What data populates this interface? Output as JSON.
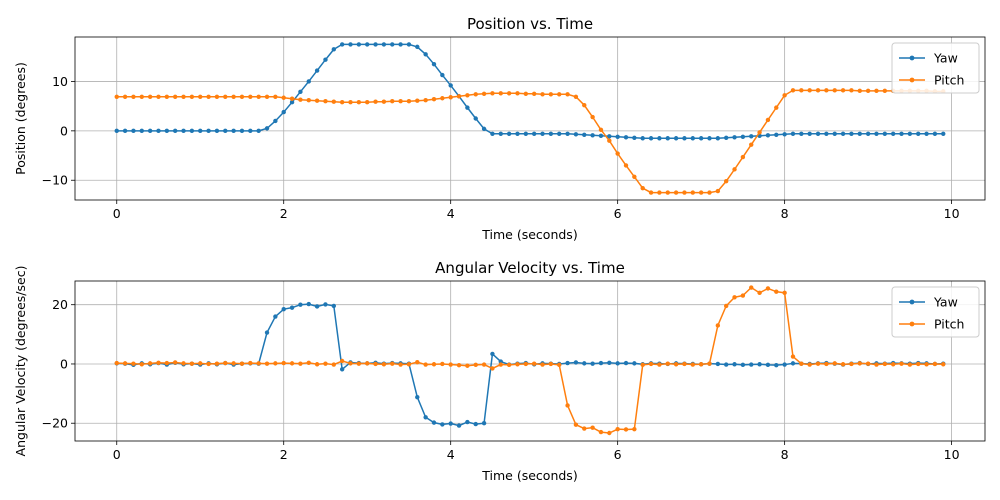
{
  "chart_data": [
    {
      "type": "line",
      "title": "Position vs. Time",
      "xlabel": "Time (seconds)",
      "ylabel": "Position (degrees)",
      "xlim": [
        -0.5,
        10.4
      ],
      "ylim": [
        -14,
        19
      ],
      "xticks": [
        0,
        2,
        4,
        6,
        8,
        10
      ],
      "yticks": [
        -10,
        0,
        10
      ],
      "grid": true,
      "legend_position": "top-right",
      "x": [
        0.0,
        0.1,
        0.2,
        0.3,
        0.4,
        0.5,
        0.6,
        0.7,
        0.8,
        0.9,
        1.0,
        1.1,
        1.2,
        1.3,
        1.4,
        1.5,
        1.6,
        1.7,
        1.8,
        1.9,
        2.0,
        2.1,
        2.2,
        2.3,
        2.4,
        2.5,
        2.6,
        2.7,
        2.8,
        2.9,
        3.0,
        3.1,
        3.2,
        3.3,
        3.4,
        3.5,
        3.6,
        3.7,
        3.8,
        3.9,
        4.0,
        4.1,
        4.2,
        4.3,
        4.4,
        4.5,
        4.6,
        4.7,
        4.8,
        4.9,
        5.0,
        5.1,
        5.2,
        5.3,
        5.4,
        5.5,
        5.6,
        5.7,
        5.8,
        5.9,
        6.0,
        6.1,
        6.2,
        6.3,
        6.4,
        6.5,
        6.6,
        6.7,
        6.8,
        6.9,
        7.0,
        7.1,
        7.2,
        7.3,
        7.4,
        7.5,
        7.6,
        7.7,
        7.8,
        7.9,
        8.0,
        8.1,
        8.2,
        8.3,
        8.4,
        8.5,
        8.6,
        8.7,
        8.8,
        8.9,
        9.0,
        9.1,
        9.2,
        9.3,
        9.4,
        9.5,
        9.6,
        9.7,
        9.8,
        9.9
      ],
      "series": [
        {
          "name": "Yaw",
          "color": "#1f77b4",
          "values": [
            0,
            0,
            0,
            0,
            0,
            0,
            0,
            0,
            0,
            0,
            0,
            0,
            0,
            0,
            0,
            0,
            0,
            0,
            0.5,
            2.0,
            3.8,
            5.8,
            7.9,
            10.0,
            12.2,
            14.4,
            16.5,
            17.5,
            17.5,
            17.5,
            17.5,
            17.5,
            17.5,
            17.5,
            17.5,
            17.5,
            17.0,
            15.5,
            13.5,
            11.3,
            9.2,
            7.0,
            4.7,
            2.5,
            0.4,
            -0.6,
            -0.6,
            -0.6,
            -0.6,
            -0.6,
            -0.6,
            -0.6,
            -0.6,
            -0.6,
            -0.6,
            -0.7,
            -0.8,
            -0.9,
            -1.0,
            -1.1,
            -1.2,
            -1.3,
            -1.4,
            -1.5,
            -1.5,
            -1.5,
            -1.5,
            -1.5,
            -1.5,
            -1.5,
            -1.5,
            -1.5,
            -1.5,
            -1.4,
            -1.3,
            -1.2,
            -1.1,
            -1.0,
            -0.9,
            -0.8,
            -0.7,
            -0.6,
            -0.6,
            -0.6,
            -0.6,
            -0.6,
            -0.6,
            -0.6,
            -0.6,
            -0.6,
            -0.6,
            -0.6,
            -0.6,
            -0.6,
            -0.6,
            -0.6,
            -0.6,
            -0.6,
            -0.6,
            -0.6
          ]
        },
        {
          "name": "Pitch",
          "color": "#ff7f0e",
          "values": [
            6.9,
            6.9,
            6.9,
            6.9,
            6.9,
            6.9,
            6.9,
            6.9,
            6.9,
            6.9,
            6.9,
            6.9,
            6.9,
            6.9,
            6.9,
            6.9,
            6.9,
            6.9,
            6.9,
            6.9,
            6.7,
            6.5,
            6.3,
            6.2,
            6.1,
            6.0,
            5.9,
            5.8,
            5.8,
            5.8,
            5.8,
            5.9,
            5.9,
            6.0,
            6.0,
            6.0,
            6.1,
            6.2,
            6.4,
            6.6,
            6.8,
            7.0,
            7.2,
            7.4,
            7.5,
            7.6,
            7.6,
            7.6,
            7.6,
            7.5,
            7.5,
            7.4,
            7.4,
            7.4,
            7.4,
            6.9,
            5.2,
            2.8,
            0.2,
            -2.0,
            -4.6,
            -7.0,
            -9.3,
            -11.6,
            -12.5,
            -12.5,
            -12.5,
            -12.5,
            -12.5,
            -12.5,
            -12.5,
            -12.5,
            -12.2,
            -10.2,
            -7.8,
            -5.3,
            -2.8,
            -0.3,
            2.2,
            4.7,
            7.2,
            8.2,
            8.2,
            8.2,
            8.2,
            8.2,
            8.2,
            8.2,
            8.2,
            8.1,
            8.1,
            8.1,
            8.1,
            8.1,
            8.1,
            8.1,
            8.1,
            8.1,
            8.0,
            8.0
          ]
        }
      ]
    },
    {
      "type": "line",
      "title": "Angular Velocity vs. Time",
      "xlabel": "Time (seconds)",
      "ylabel": "Angular Velocity (degrees/sec)",
      "xlim": [
        -0.5,
        10.4
      ],
      "ylim": [
        -26,
        28
      ],
      "xticks": [
        0,
        2,
        4,
        6,
        8,
        10
      ],
      "yticks": [
        -20,
        0,
        20
      ],
      "grid": true,
      "legend_position": "top-right",
      "x": [
        0.0,
        0.1,
        0.2,
        0.3,
        0.4,
        0.5,
        0.6,
        0.7,
        0.8,
        0.9,
        1.0,
        1.1,
        1.2,
        1.3,
        1.4,
        1.5,
        1.6,
        1.7,
        1.8,
        1.9,
        2.0,
        2.1,
        2.2,
        2.3,
        2.4,
        2.5,
        2.6,
        2.7,
        2.8,
        2.9,
        3.0,
        3.1,
        3.2,
        3.3,
        3.4,
        3.5,
        3.6,
        3.7,
        3.8,
        3.9,
        4.0,
        4.1,
        4.2,
        4.3,
        4.4,
        4.5,
        4.6,
        4.7,
        4.8,
        4.9,
        5.0,
        5.1,
        5.2,
        5.3,
        5.4,
        5.5,
        5.6,
        5.7,
        5.8,
        5.9,
        6.0,
        6.1,
        6.2,
        6.3,
        6.4,
        6.5,
        6.6,
        6.7,
        6.8,
        6.9,
        7.0,
        7.1,
        7.2,
        7.3,
        7.4,
        7.5,
        7.6,
        7.7,
        7.8,
        7.9,
        8.0,
        8.1,
        8.2,
        8.3,
        8.4,
        8.5,
        8.6,
        8.7,
        8.8,
        8.9,
        9.0,
        9.1,
        9.2,
        9.3,
        9.4,
        9.5,
        9.6,
        9.7,
        9.8,
        9.9
      ],
      "series": [
        {
          "name": "Yaw",
          "color": "#1f77b4",
          "values": [
            0.2,
            0.1,
            -0.3,
            0.2,
            -0.1,
            0.3,
            -0.2,
            0.4,
            -0.1,
            0.1,
            -0.2,
            0.2,
            -0.1,
            0.3,
            -0.2,
            0.1,
            0.2,
            0.1,
            10.6,
            16.0,
            18.5,
            19.0,
            20.0,
            20.2,
            19.4,
            20.1,
            19.6,
            -1.8,
            0.5,
            0.3,
            0.2,
            0.4,
            0.1,
            0.3,
            0.2,
            0.1,
            -11.2,
            -18.0,
            -19.8,
            -20.4,
            -20.1,
            -20.8,
            -19.6,
            -20.3,
            -20.0,
            3.4,
            0.8,
            -0.2,
            0.1,
            0.3,
            -0.1,
            0.2,
            0.1,
            0.0,
            0.3,
            0.5,
            0.2,
            0.1,
            0.3,
            0.4,
            0.2,
            0.3,
            0.2,
            -0.1,
            0.2,
            0.1,
            0.0,
            0.2,
            0.1,
            0.0,
            -0.1,
            0.1,
            0.0,
            -0.2,
            -0.1,
            -0.3,
            -0.2,
            -0.1,
            -0.3,
            -0.4,
            -0.2,
            0.2,
            0.1,
            0.0,
            0.2,
            0.3,
            0.1,
            -0.2,
            0.1,
            0.3,
            0.0,
            0.2,
            0.1,
            0.3,
            0.2,
            0.1,
            0.3,
            0.2,
            0.0,
            0.1
          ]
        },
        {
          "name": "Pitch",
          "color": "#ff7f0e",
          "values": [
            0.3,
            0.2,
            0.1,
            -0.1,
            0.2,
            0.4,
            0.3,
            0.5,
            0.2,
            0.1,
            0.2,
            0.0,
            0.1,
            0.3,
            0.2,
            0.1,
            0.3,
            0.2,
            0.1,
            0.2,
            0.3,
            0.2,
            0.1,
            0.4,
            -0.1,
            0.1,
            -0.2,
            1.0,
            0.2,
            0.1,
            0.2,
            0.0,
            -0.1,
            0.1,
            -0.2,
            -0.1,
            0.6,
            -0.2,
            -0.1,
            0.0,
            -0.2,
            -0.4,
            -0.6,
            -0.3,
            -0.2,
            -1.5,
            -0.2,
            -0.3,
            -0.1,
            0.0,
            0.1,
            -0.2,
            0.0,
            -0.3,
            -14.0,
            -20.5,
            -21.8,
            -21.5,
            -23.0,
            -23.3,
            -22.0,
            -22.1,
            -22.0,
            -0.3,
            0.0,
            -0.2,
            0.1,
            -0.1,
            0.0,
            -0.2,
            -0.1,
            0.1,
            13.0,
            19.6,
            22.5,
            23.1,
            25.8,
            24.0,
            25.5,
            24.4,
            24.0,
            2.5,
            0.1,
            -0.2,
            0.1,
            0.0,
            0.2,
            -0.1,
            0.0,
            0.2,
            0.1,
            -0.2,
            0.0,
            -0.1,
            0.1,
            -0.2,
            0.0,
            -0.1,
            0.0,
            -0.1
          ]
        }
      ]
    }
  ]
}
